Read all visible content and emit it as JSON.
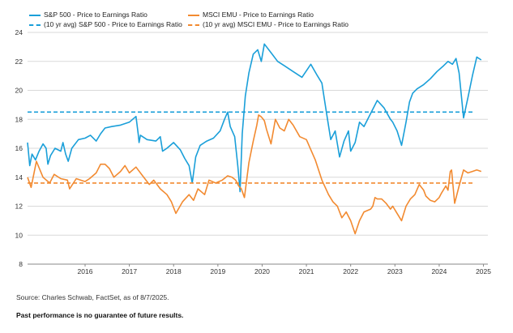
{
  "chart_data": {
    "type": "line",
    "ylim": [
      8,
      24
    ],
    "yticks": [
      8,
      10,
      12,
      14,
      16,
      18,
      20,
      22,
      24
    ],
    "xlim": [
      2015.2,
      2025.6
    ],
    "xticks": [
      "2016",
      "2017",
      "2018",
      "2019",
      "2020",
      "2021",
      "2022",
      "2023",
      "2024",
      "2025"
    ],
    "grid": true,
    "legend_position": "top-left",
    "colors": {
      "sp500": "#1a9fd9",
      "emu": "#f28a30"
    },
    "series": [
      {
        "name": "S&P 500 - Price to Earnings Ratio",
        "color": "#1a9fd9",
        "style": "solid",
        "x": [
          2015.2,
          2015.25,
          2015.3,
          2015.38,
          2015.46,
          2015.55,
          2015.62,
          2015.66,
          2015.72,
          2015.82,
          2015.95,
          2016.0,
          2016.06,
          2016.12,
          2016.2,
          2016.35,
          2016.5,
          2016.62,
          2016.75,
          2016.85,
          2016.95,
          2017.1,
          2017.3,
          2017.5,
          2017.65,
          2017.7,
          2017.72,
          2017.75,
          2017.9,
          2018.1,
          2018.2,
          2018.25,
          2018.35,
          2018.5,
          2018.65,
          2018.75,
          2018.85,
          2018.92,
          2019.0,
          2019.1,
          2019.25,
          2019.4,
          2019.55,
          2019.65,
          2019.72,
          2019.78,
          2019.88,
          2019.95,
          2020.0,
          2020.02,
          2020.05,
          2020.12,
          2020.2,
          2020.3,
          2020.4,
          2020.48,
          2020.55,
          2020.7,
          2020.85,
          2021.0,
          2021.2,
          2021.4,
          2021.6,
          2021.75,
          2021.85,
          2021.95,
          2022.05,
          2022.15,
          2022.25,
          2022.35,
          2022.45,
          2022.5,
          2022.6,
          2022.7,
          2022.8,
          2022.95,
          2023.1,
          2023.25,
          2023.4,
          2023.45,
          2023.55,
          2023.65,
          2023.75,
          2023.83,
          2023.9,
          2024.0,
          2024.15,
          2024.3,
          2024.45,
          2024.6,
          2024.7,
          2024.8,
          2024.88,
          2024.95,
          2025.05,
          2025.15,
          2025.25,
          2025.35,
          2025.45
        ],
        "values": [
          16.4,
          14.8,
          15.6,
          15.2,
          15.8,
          16.3,
          16.0,
          14.9,
          15.5,
          16.0,
          15.8,
          16.4,
          15.6,
          15.1,
          16.0,
          16.6,
          16.7,
          16.9,
          16.5,
          17.0,
          17.4,
          17.5,
          17.6,
          17.8,
          18.2,
          17.0,
          16.4,
          16.9,
          16.6,
          16.5,
          16.8,
          15.8,
          16.0,
          16.4,
          15.9,
          15.3,
          14.8,
          13.6,
          15.4,
          16.2,
          16.5,
          16.7,
          17.2,
          18.0,
          18.5,
          17.5,
          16.8,
          14.8,
          13.0,
          14.5,
          17.0,
          19.6,
          21.2,
          22.5,
          22.8,
          22.0,
          23.2,
          22.6,
          22.0,
          21.7,
          21.3,
          20.9,
          21.8,
          21.0,
          20.5,
          18.5,
          16.6,
          17.2,
          15.4,
          16.5,
          17.2,
          15.8,
          16.4,
          17.8,
          17.5,
          18.4,
          19.3,
          18.8,
          18.0,
          17.8,
          17.2,
          16.2,
          17.8,
          19.2,
          19.8,
          20.1,
          20.4,
          20.8,
          21.3,
          21.7,
          22.0,
          21.8,
          22.2,
          21.2,
          18.1,
          19.5,
          21.0,
          22.3,
          22.1
        ]
      },
      {
        "name": "MSCI EMU - Price to Earnings Ratio",
        "color": "#f28a30",
        "style": "solid",
        "x": [
          2015.2,
          2015.28,
          2015.4,
          2015.55,
          2015.7,
          2015.8,
          2015.95,
          2016.1,
          2016.15,
          2016.3,
          2016.5,
          2016.6,
          2016.75,
          2016.85,
          2016.95,
          2017.05,
          2017.15,
          2017.3,
          2017.4,
          2017.5,
          2017.65,
          2017.8,
          2017.95,
          2018.05,
          2018.2,
          2018.35,
          2018.45,
          2018.55,
          2018.7,
          2018.85,
          2018.95,
          2019.05,
          2019.2,
          2019.3,
          2019.45,
          2019.6,
          2019.72,
          2019.82,
          2019.9,
          2019.97,
          2020.03,
          2020.1,
          2020.2,
          2020.3,
          2020.38,
          2020.42,
          2020.47,
          2020.5,
          2020.55,
          2020.6,
          2020.7,
          2020.8,
          2020.9,
          2021.0,
          2021.1,
          2021.2,
          2021.35,
          2021.5,
          2021.7,
          2021.85,
          2022.0,
          2022.1,
          2022.2,
          2022.3,
          2022.4,
          2022.5,
          2022.6,
          2022.7,
          2022.8,
          2022.95,
          2023.0,
          2023.05,
          2023.1,
          2023.2,
          2023.3,
          2023.4,
          2023.45,
          2023.55,
          2023.65,
          2023.75,
          2023.85,
          2023.95,
          2024.05,
          2024.15,
          2024.2,
          2024.3,
          2024.4,
          2024.5,
          2024.55,
          2024.65,
          2024.7,
          2024.75,
          2024.78,
          2024.85,
          2024.95,
          2025.05,
          2025.15,
          2025.25,
          2025.35,
          2025.45
        ],
        "values": [
          14.0,
          13.3,
          15.1,
          14.0,
          13.6,
          14.2,
          13.9,
          13.8,
          13.2,
          13.9,
          13.7,
          13.9,
          14.3,
          14.9,
          14.9,
          14.6,
          14.0,
          14.4,
          14.8,
          14.3,
          14.7,
          14.1,
          13.5,
          13.8,
          13.2,
          12.8,
          12.3,
          11.5,
          12.3,
          12.8,
          12.4,
          13.2,
          12.8,
          13.8,
          13.6,
          13.8,
          14.1,
          14.0,
          13.8,
          13.4,
          13.2,
          12.6,
          15.0,
          16.5,
          17.6,
          18.3,
          18.2,
          18.1,
          17.9,
          17.3,
          16.3,
          18.0,
          17.4,
          17.2,
          18.0,
          17.6,
          16.8,
          16.6,
          15.2,
          13.8,
          12.8,
          12.3,
          12.0,
          11.2,
          11.6,
          11.0,
          10.1,
          11.0,
          11.6,
          11.8,
          12.0,
          12.6,
          12.5,
          12.5,
          12.2,
          11.8,
          12.0,
          11.5,
          11.0,
          12.0,
          12.5,
          12.8,
          13.5,
          13.1,
          12.7,
          12.4,
          12.3,
          12.6,
          12.9,
          13.4,
          13.1,
          14.4,
          14.5,
          12.2,
          13.4,
          14.5,
          14.3,
          14.4,
          14.5,
          14.4
        ]
      },
      {
        "name": "(10 yr avg) S&P 500 - Price to Earnings Ratio",
        "color": "#1a9fd9",
        "style": "dashed",
        "value": 18.5
      },
      {
        "name": "(10 yr avg) MSCI EMU - Price to Earnings Ratio",
        "color": "#f28a30",
        "style": "dashed",
        "value": 13.6
      }
    ]
  },
  "legend": [
    {
      "label": "S&P 500 - Price to Earnings Ratio",
      "color": "#1a9fd9",
      "style": "solid"
    },
    {
      "label": "MSCI EMU - Price to Earnings Ratio",
      "color": "#f28a30",
      "style": "solid"
    },
    {
      "label": "(10 yr avg) S&P 500 - Price to Earnings Ratio",
      "color": "#1a9fd9",
      "style": "dashed"
    },
    {
      "label": "(10 yr avg) MSCI EMU - Price to Earnings Ratio",
      "color": "#f28a30",
      "style": "dashed"
    }
  ],
  "footer": {
    "source": "Source: Charles Schwab, FactSet, as of 8/7/2025.",
    "disclaimer": "Past performance is no guarantee of future results."
  }
}
